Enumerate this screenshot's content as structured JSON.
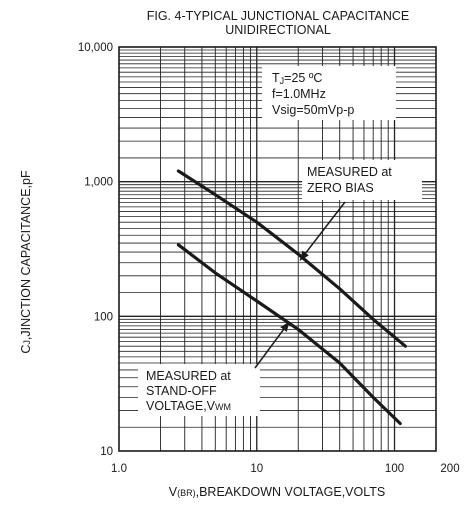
{
  "chart_data": {
    "type": "line",
    "title_line1": "FIG. 4-TYPICAL JUNCTIONAL CAPACITANCE",
    "title_line2": "UNIDIRECTIONAL",
    "xlabel": "V(BR),BREAKDOWN VOLTAGE,VOLTS",
    "xlabel_prefix": "V",
    "xlabel_sub": "(BR)",
    "xlabel_rest": ",BREAKDOWN VOLTAGE,VOLTS",
    "ylabel": "CJ,JINCTION CAPACITANCE,pF",
    "ylabel_prefix": "C",
    "ylabel_sub": "J",
    "ylabel_rest": ",JINCTION CAPACITANCE,pF",
    "x_scale": "log",
    "y_scale": "log",
    "xlim": [
      1,
      200
    ],
    "ylim": [
      10,
      10000
    ],
    "x_ticks": [
      {
        "value": 1,
        "label": "1.0"
      },
      {
        "value": 10,
        "label": "10"
      },
      {
        "value": 100,
        "label": "100"
      },
      {
        "value": 200,
        "label": "200"
      }
    ],
    "y_ticks": [
      {
        "value": 10,
        "label": "10"
      },
      {
        "value": 100,
        "label": "100"
      },
      {
        "value": 1000,
        "label": "1,000"
      },
      {
        "value": 10000,
        "label": "10,000"
      }
    ],
    "grid": true,
    "series": [
      {
        "id": "zero-bias",
        "x": [
          2.7,
          5,
          10,
          20,
          40,
          70,
          120
        ],
        "y": [
          1200,
          800,
          500,
          290,
          160,
          95,
          60
        ]
      },
      {
        "id": "stand-off",
        "x": [
          2.7,
          5,
          10,
          20,
          40,
          70,
          110
        ],
        "y": [
          340,
          210,
          130,
          80,
          45,
          25,
          16
        ]
      }
    ],
    "conditions": {
      "line1_prefix": "T",
      "line1_sub": "J",
      "line1_rest": "=25 ºC",
      "line2": "f=1.0MHz",
      "line3": "Vsig=50mVp-p"
    },
    "annotations": [
      {
        "id": "zero-bias",
        "line1": "MEASURED at",
        "line2": "ZERO BIAS",
        "arrow_to": {
          "x": 20,
          "y": 290
        }
      },
      {
        "id": "stand-off",
        "line1": "MEASURED at",
        "line2": "STAND-OFF",
        "line3_prefix": "VOLTAGE,V",
        "line3_sub": "WM",
        "arrow_to": {
          "x": 16,
          "y": 100
        }
      }
    ]
  }
}
